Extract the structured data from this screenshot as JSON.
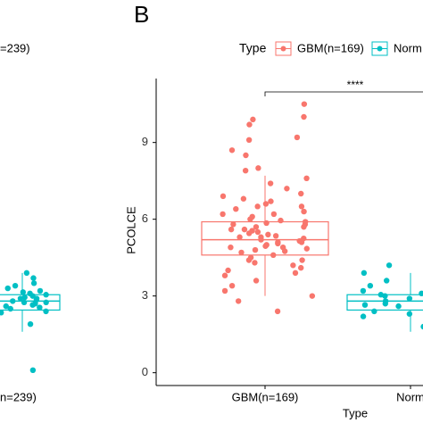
{
  "chart_data": [
    {
      "type": "box",
      "categories": [
        "n=239)"
      ],
      "series": [
        {
          "name": "=239)",
          "color": "#00BFC4",
          "box": {
            "min": 1.6,
            "q1": 2.45,
            "median": 2.8,
            "q3": 3.05,
            "max": 3.9
          },
          "points": [
            2.1,
            2.4,
            2.5,
            2.6,
            2.7,
            2.75,
            2.8,
            2.85,
            2.9,
            2.95,
            3.0,
            3.1,
            3.2,
            3.3,
            3.4,
            3.5,
            3.7,
            2.2,
            2.65,
            2.9,
            3.05,
            2.55,
            2.35,
            3.15,
            2.75,
            0.1,
            1.9,
            3.9
          ]
        }
      ],
      "ylim": [
        -0.5,
        11.5
      ]
    },
    {
      "type": "box",
      "panel_label": "B",
      "y_label": "PCOLCE",
      "x_label": "Type",
      "legend_title": "Type",
      "annotation": "****",
      "categories": [
        "GBM(n=169)",
        "Norm"
      ],
      "series": [
        {
          "name": "GBM(n=169)",
          "color": "#F8766D",
          "box": {
            "min": 3.0,
            "q1": 4.6,
            "median": 5.2,
            "q3": 5.9,
            "max": 7.7
          },
          "points": [
            10.5,
            10.0,
            9.9,
            9.7,
            9.2,
            9.1,
            8.7,
            8.5,
            8.0,
            7.9,
            7.6,
            7.4,
            7.2,
            7.0,
            6.9,
            6.8,
            6.7,
            6.6,
            6.5,
            6.4,
            6.3,
            6.2,
            6.1,
            6.0,
            5.95,
            5.9,
            5.85,
            5.8,
            5.7,
            5.6,
            5.55,
            5.5,
            5.45,
            5.4,
            5.35,
            5.3,
            5.25,
            5.2,
            5.15,
            5.1,
            5.05,
            5.0,
            4.95,
            4.9,
            4.85,
            4.8,
            4.75,
            4.7,
            4.6,
            4.5,
            4.4,
            4.3,
            4.2,
            4.1,
            4.0,
            3.9,
            3.8,
            3.6,
            3.4,
            3.2,
            3.0,
            2.8,
            2.4,
            5.6,
            5.3,
            6.2,
            4.9,
            5.8,
            6.5,
            4.4,
            5.1,
            5.7
          ]
        },
        {
          "name": "Norm",
          "color": "#00BFC4",
          "box": {
            "min": 1.6,
            "q1": 2.45,
            "median": 2.8,
            "q3": 3.05,
            "max": 3.9
          },
          "points": [
            4.5,
            4.2,
            3.9,
            3.6,
            3.4,
            3.2,
            3.1,
            3.0,
            2.95,
            2.9,
            2.85,
            2.8,
            2.75,
            2.7,
            2.6,
            2.5,
            2.4,
            2.3,
            2.2,
            2.0,
            1.8,
            1.6,
            2.65,
            2.9,
            3.05,
            2.55
          ]
        }
      ],
      "ylim": [
        -0.5,
        11.5
      ],
      "yticks": [
        0,
        3,
        6,
        9
      ]
    }
  ]
}
